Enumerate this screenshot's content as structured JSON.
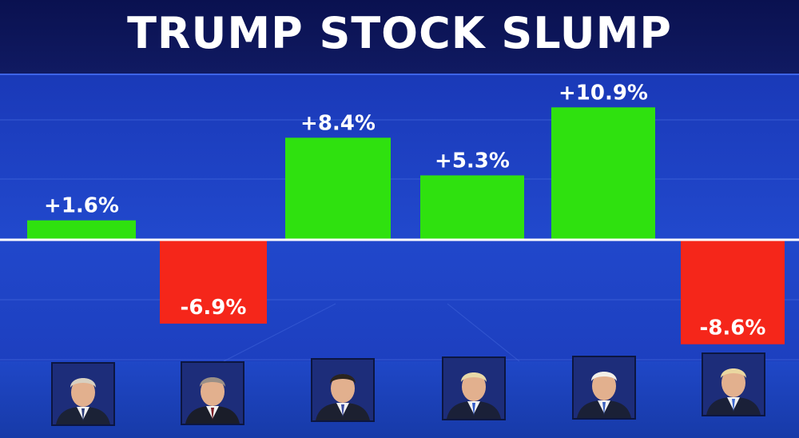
{
  "title": "TRUMP STOCK SLUMP",
  "chart_data": {
    "type": "bar",
    "title": "TRUMP STOCK SLUMP",
    "categories": [
      "",
      "",
      "",
      "",
      "",
      ""
    ],
    "values": [
      1.6,
      -6.9,
      8.4,
      5.3,
      10.9,
      -8.6
    ],
    "labels": [
      "+1.6%",
      "-6.9%",
      "+8.4%",
      "+5.3%",
      "+10.9%",
      "-8.6%"
    ],
    "ylim": [
      -11,
      14
    ],
    "grid": true,
    "colors": {
      "positive": "#2fe10f",
      "negative": "#f5261a"
    }
  },
  "portraits": [
    {
      "icon": "portrait-icon",
      "hair": "#d8d0c0",
      "suit": "#1b2236",
      "tie": "#2a3a78"
    },
    {
      "icon": "portrait-icon",
      "hair": "#9a8f86",
      "suit": "#1a1d29",
      "tie": "#7a1c25"
    },
    {
      "icon": "portrait-icon",
      "hair": "#2a2420",
      "suit": "#1c2030",
      "tie": "#3a4aa0"
    },
    {
      "icon": "portrait-icon",
      "hair": "#e8d9a8",
      "suit": "#1a2038",
      "tie": "#2f58c8"
    },
    {
      "icon": "portrait-icon",
      "hair": "#f2efe8",
      "suit": "#1a2036",
      "tie": "#3a60c0"
    },
    {
      "icon": "portrait-icon",
      "hair": "#ead7a0",
      "suit": "#1a2038",
      "tie": "#3e68d0"
    }
  ]
}
